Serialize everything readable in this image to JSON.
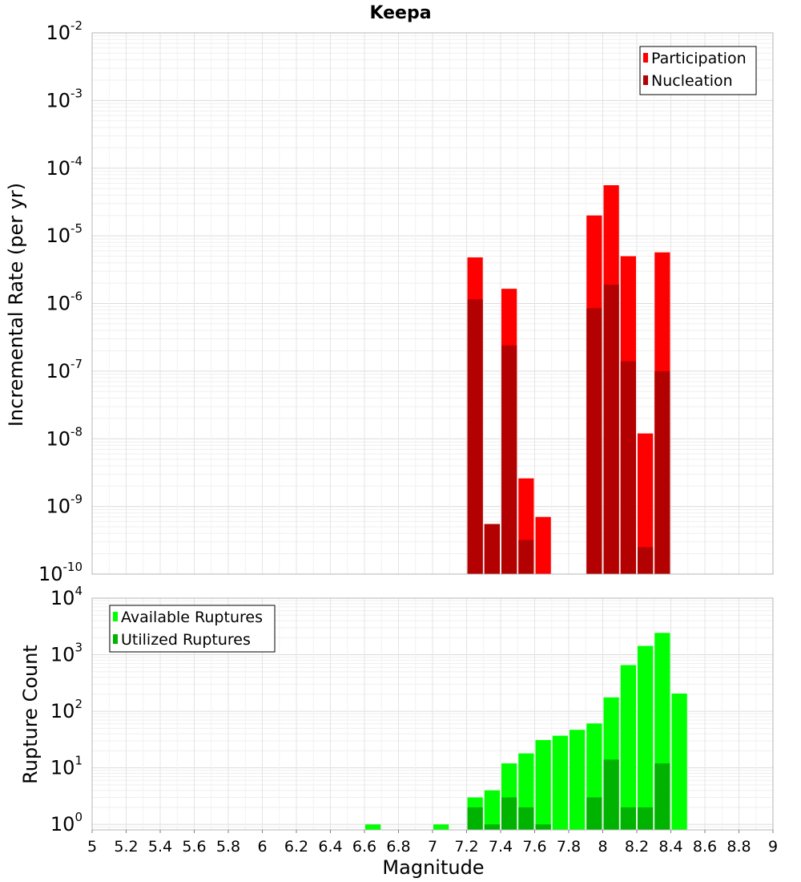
{
  "chart_data": [
    {
      "type": "bar",
      "title": "Keepa",
      "xlabel": "",
      "ylabel": "Incremental Rate (per yr)",
      "yscale": "log",
      "ylim": [
        1e-10,
        0.01
      ],
      "xlim": [
        5,
        9
      ],
      "ytick_labels": [
        {
          "base": "10",
          "exp": "-2",
          "value": 0.01
        },
        {
          "base": "10",
          "exp": "-3",
          "value": 0.001
        },
        {
          "base": "10",
          "exp": "-4",
          "value": 0.0001
        },
        {
          "base": "10",
          "exp": "-5",
          "value": 1e-05
        },
        {
          "base": "10",
          "exp": "-6",
          "value": 1e-06
        },
        {
          "base": "10",
          "exp": "-7",
          "value": 1e-07
        },
        {
          "base": "10",
          "exp": "-8",
          "value": 1e-08
        },
        {
          "base": "10",
          "exp": "-9",
          "value": 1e-09
        },
        {
          "base": "10",
          "exp": "-10",
          "value": 1e-10
        }
      ],
      "legend": {
        "position": "top-right"
      },
      "grid": true,
      "series": [
        {
          "name": "Participation",
          "color": "#ff0000",
          "points": [
            {
              "x": 7.25,
              "y": 4.8e-06
            },
            {
              "x": 7.35,
              "y": 5.5e-10
            },
            {
              "x": 7.45,
              "y": 1.65e-06
            },
            {
              "x": 7.55,
              "y": 2.6e-09
            },
            {
              "x": 7.65,
              "y": 7e-10
            },
            {
              "x": 7.95,
              "y": 2e-05
            },
            {
              "x": 8.05,
              "y": 5.6e-05
            },
            {
              "x": 8.15,
              "y": 5e-06
            },
            {
              "x": 8.25,
              "y": 1.2e-08
            },
            {
              "x": 8.35,
              "y": 5.7e-06
            }
          ]
        },
        {
          "name": "Nucleation",
          "color": "#b30000",
          "points": [
            {
              "x": 7.25,
              "y": 1.15e-06
            },
            {
              "x": 7.35,
              "y": 5.5e-10
            },
            {
              "x": 7.45,
              "y": 2.4e-07
            },
            {
              "x": 7.55,
              "y": 3.2e-10
            },
            {
              "x": 7.95,
              "y": 8.5e-07
            },
            {
              "x": 8.05,
              "y": 1.9e-06
            },
            {
              "x": 8.15,
              "y": 1.4e-07
            },
            {
              "x": 8.25,
              "y": 2.5e-10
            },
            {
              "x": 8.35,
              "y": 1e-07
            }
          ]
        }
      ]
    },
    {
      "type": "bar",
      "title": "",
      "xlabel": "Magnitude",
      "ylabel": "Rupture Count",
      "yscale": "log",
      "ylim": [
        0.8,
        10000
      ],
      "xlim": [
        5,
        9
      ],
      "xtick_labels": [
        "5",
        "5.2",
        "5.4",
        "5.6",
        "5.8",
        "6",
        "6.2",
        "6.4",
        "6.6",
        "6.8",
        "7",
        "7.2",
        "7.4",
        "7.6",
        "7.8",
        "8",
        "8.2",
        "8.4",
        "8.6",
        "8.8",
        "9"
      ],
      "ytick_labels": [
        {
          "base": "10",
          "exp": "4",
          "value": 10000
        },
        {
          "base": "10",
          "exp": "3",
          "value": 1000
        },
        {
          "base": "10",
          "exp": "2",
          "value": 100
        },
        {
          "base": "10",
          "exp": "1",
          "value": 10
        },
        {
          "base": "10",
          "exp": "0",
          "value": 1
        }
      ],
      "legend": {
        "position": "top-left"
      },
      "grid": true,
      "series": [
        {
          "name": "Available Ruptures",
          "color": "#00ff00",
          "points": [
            {
              "x": 6.65,
              "y": 1
            },
            {
              "x": 7.05,
              "y": 1
            },
            {
              "x": 7.25,
              "y": 3
            },
            {
              "x": 7.35,
              "y": 4
            },
            {
              "x": 7.45,
              "y": 12
            },
            {
              "x": 7.55,
              "y": 18
            },
            {
              "x": 7.65,
              "y": 31
            },
            {
              "x": 7.75,
              "y": 37
            },
            {
              "x": 7.85,
              "y": 47
            },
            {
              "x": 7.95,
              "y": 61
            },
            {
              "x": 8.05,
              "y": 176
            },
            {
              "x": 8.15,
              "y": 655
            },
            {
              "x": 8.25,
              "y": 1430
            },
            {
              "x": 8.35,
              "y": 2430
            },
            {
              "x": 8.45,
              "y": 206
            }
          ]
        },
        {
          "name": "Utilized Ruptures",
          "color": "#00b300",
          "points": [
            {
              "x": 7.25,
              "y": 2
            },
            {
              "x": 7.35,
              "y": 1
            },
            {
              "x": 7.45,
              "y": 3
            },
            {
              "x": 7.55,
              "y": 2
            },
            {
              "x": 7.65,
              "y": 1
            },
            {
              "x": 7.95,
              "y": 3
            },
            {
              "x": 8.05,
              "y": 14
            },
            {
              "x": 8.15,
              "y": 2
            },
            {
              "x": 8.25,
              "y": 2
            },
            {
              "x": 8.35,
              "y": 12
            }
          ]
        }
      ]
    }
  ]
}
